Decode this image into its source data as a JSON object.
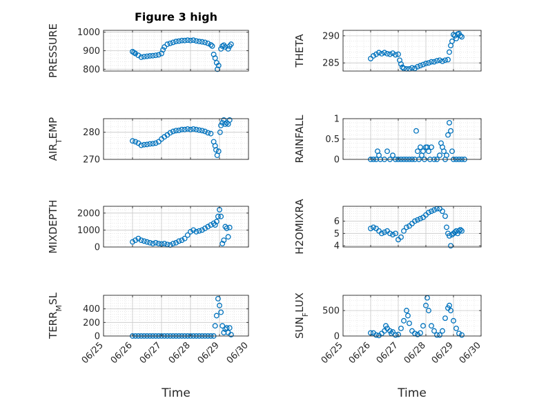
{
  "title": "Figure 3 high",
  "xlabel": "Time",
  "xticks": [
    "06/25",
    "06/26",
    "06/27",
    "06/28",
    "06/29",
    "06/30"
  ],
  "marker_color": "#0072BD",
  "chart_data": [
    {
      "name": "pressure",
      "type": "scatter",
      "ylabel_main": "PRESSURE",
      "ylabel_sub": "",
      "ylabel_tail": "",
      "ylim": [
        790,
        1010
      ],
      "yticks": [
        800,
        900,
        1000
      ],
      "xlim": [
        0,
        5
      ],
      "points": [
        [
          1.0,
          895
        ],
        [
          1.05,
          890
        ],
        [
          1.1,
          885
        ],
        [
          1.2,
          875
        ],
        [
          1.3,
          865
        ],
        [
          1.4,
          868
        ],
        [
          1.5,
          870
        ],
        [
          1.6,
          872
        ],
        [
          1.7,
          873
        ],
        [
          1.8,
          875
        ],
        [
          1.9,
          878
        ],
        [
          2.0,
          885
        ],
        [
          2.05,
          905
        ],
        [
          2.1,
          920
        ],
        [
          2.2,
          935
        ],
        [
          2.3,
          940
        ],
        [
          2.4,
          945
        ],
        [
          2.5,
          950
        ],
        [
          2.6,
          952
        ],
        [
          2.7,
          955
        ],
        [
          2.8,
          955
        ],
        [
          2.9,
          957
        ],
        [
          3.0,
          955
        ],
        [
          3.1,
          957
        ],
        [
          3.2,
          953
        ],
        [
          3.3,
          950
        ],
        [
          3.4,
          948
        ],
        [
          3.5,
          945
        ],
        [
          3.6,
          940
        ],
        [
          3.7,
          932
        ],
        [
          3.75,
          925
        ],
        [
          3.8,
          880
        ],
        [
          3.85,
          860
        ],
        [
          3.9,
          835
        ],
        [
          3.93,
          800
        ],
        [
          3.97,
          820
        ],
        [
          4.05,
          910
        ],
        [
          4.1,
          925
        ],
        [
          4.15,
          930
        ],
        [
          4.2,
          920
        ],
        [
          4.3,
          910
        ],
        [
          4.35,
          925
        ],
        [
          4.4,
          935
        ]
      ]
    },
    {
      "name": "theta",
      "type": "scatter",
      "ylabel_main": "THETA",
      "ylabel_sub": "",
      "ylabel_tail": "",
      "ylim": [
        283.5,
        291
      ],
      "yticks": [
        285,
        290
      ],
      "xlim": [
        0,
        5
      ],
      "points": [
        [
          1.0,
          285.8
        ],
        [
          1.1,
          286.3
        ],
        [
          1.2,
          286.6
        ],
        [
          1.3,
          286.9
        ],
        [
          1.4,
          286.7
        ],
        [
          1.5,
          286.9
        ],
        [
          1.6,
          286.7
        ],
        [
          1.7,
          286.6
        ],
        [
          1.8,
          286.8
        ],
        [
          1.9,
          286.5
        ],
        [
          2.0,
          286.6
        ],
        [
          2.05,
          285.5
        ],
        [
          2.1,
          284.8
        ],
        [
          2.15,
          284.2
        ],
        [
          2.2,
          284.0
        ],
        [
          2.3,
          283.9
        ],
        [
          2.4,
          283.9
        ],
        [
          2.5,
          284.1
        ],
        [
          2.6,
          284.0
        ],
        [
          2.7,
          284.3
        ],
        [
          2.8,
          284.5
        ],
        [
          2.9,
          284.7
        ],
        [
          3.0,
          284.9
        ],
        [
          3.1,
          285.0
        ],
        [
          3.2,
          285.2
        ],
        [
          3.3,
          285.2
        ],
        [
          3.4,
          285.4
        ],
        [
          3.5,
          285.5
        ],
        [
          3.6,
          285.3
        ],
        [
          3.7,
          285.5
        ],
        [
          3.8,
          285.6
        ],
        [
          3.85,
          287.0
        ],
        [
          3.9,
          288.2
        ],
        [
          3.95,
          289.0
        ],
        [
          4.0,
          290.2
        ],
        [
          4.05,
          290.0
        ],
        [
          4.1,
          289.5
        ],
        [
          4.15,
          290.3
        ],
        [
          4.2,
          290.4
        ],
        [
          4.25,
          290.0
        ],
        [
          4.3,
          289.8
        ]
      ]
    },
    {
      "name": "air_temp",
      "type": "scatter",
      "ylabel_main": "AIR",
      "ylabel_sub": "T",
      "ylabel_tail": "EMP",
      "ylim": [
        270,
        285
      ],
      "yticks": [
        270,
        280
      ],
      "xlim": [
        0,
        5
      ],
      "points": [
        [
          1.0,
          276.8
        ],
        [
          1.1,
          276.5
        ],
        [
          1.2,
          276.0
        ],
        [
          1.3,
          275.2
        ],
        [
          1.4,
          275.4
        ],
        [
          1.5,
          275.5
        ],
        [
          1.6,
          275.7
        ],
        [
          1.7,
          275.8
        ],
        [
          1.8,
          276.0
        ],
        [
          1.9,
          276.5
        ],
        [
          2.0,
          277.5
        ],
        [
          2.1,
          278.3
        ],
        [
          2.2,
          279.0
        ],
        [
          2.3,
          279.8
        ],
        [
          2.4,
          280.3
        ],
        [
          2.5,
          280.6
        ],
        [
          2.6,
          280.7
        ],
        [
          2.7,
          281.0
        ],
        [
          2.8,
          281.0
        ],
        [
          2.9,
          281.2
        ],
        [
          3.0,
          281.0
        ],
        [
          3.1,
          281.2
        ],
        [
          3.2,
          281.0
        ],
        [
          3.3,
          280.8
        ],
        [
          3.4,
          280.6
        ],
        [
          3.5,
          280.3
        ],
        [
          3.6,
          279.8
        ],
        [
          3.7,
          279.5
        ],
        [
          3.8,
          276.5
        ],
        [
          3.85,
          275.0
        ],
        [
          3.88,
          273.5
        ],
        [
          3.92,
          271.5
        ],
        [
          3.97,
          273.0
        ],
        [
          4.02,
          280.0
        ],
        [
          4.05,
          282.5
        ],
        [
          4.1,
          283.5
        ],
        [
          4.15,
          284.5
        ],
        [
          4.2,
          283.0
        ],
        [
          4.25,
          283.5
        ],
        [
          4.3,
          283.0
        ],
        [
          4.35,
          284.5
        ]
      ]
    },
    {
      "name": "rainfall",
      "type": "scatter",
      "ylabel_main": "RAINFALL",
      "ylabel_sub": "",
      "ylabel_tail": "",
      "ylim": [
        0,
        1
      ],
      "yticks": [
        0,
        0.5,
        1
      ],
      "ytick_labels": [
        "0",
        "0.5",
        "1"
      ],
      "xlim": [
        0,
        5
      ],
      "points": [
        [
          1.0,
          0
        ],
        [
          1.1,
          0
        ],
        [
          1.2,
          0
        ],
        [
          1.25,
          0.2
        ],
        [
          1.3,
          0.1
        ],
        [
          1.35,
          0
        ],
        [
          1.5,
          0
        ],
        [
          1.6,
          0.2
        ],
        [
          1.7,
          0
        ],
        [
          1.8,
          0.1
        ],
        [
          1.9,
          0
        ],
        [
          2.0,
          0
        ],
        [
          2.1,
          0
        ],
        [
          2.2,
          0
        ],
        [
          2.3,
          0
        ],
        [
          2.4,
          0
        ],
        [
          2.5,
          0
        ],
        [
          2.6,
          0
        ],
        [
          2.65,
          0.7
        ],
        [
          2.7,
          0.2
        ],
        [
          2.75,
          0
        ],
        [
          2.8,
          0.3
        ],
        [
          2.85,
          0.1
        ],
        [
          2.9,
          0.2
        ],
        [
          2.95,
          0
        ],
        [
          3.0,
          0.3
        ],
        [
          3.05,
          0.3
        ],
        [
          3.1,
          0.2
        ],
        [
          3.15,
          0
        ],
        [
          3.2,
          0.3
        ],
        [
          3.3,
          0
        ],
        [
          3.4,
          0
        ],
        [
          3.5,
          0.1
        ],
        [
          3.55,
          0.4
        ],
        [
          3.6,
          0.3
        ],
        [
          3.65,
          0.2
        ],
        [
          3.7,
          0
        ],
        [
          3.75,
          0.1
        ],
        [
          3.8,
          0.6
        ],
        [
          3.85,
          0.9
        ],
        [
          3.9,
          0.7
        ],
        [
          3.95,
          0.2
        ],
        [
          4.0,
          0
        ],
        [
          4.1,
          0
        ],
        [
          4.2,
          0
        ],
        [
          4.3,
          0
        ],
        [
          4.4,
          0
        ]
      ]
    },
    {
      "name": "mixdepth",
      "type": "scatter",
      "ylabel_main": "MIXDEPTH",
      "ylabel_sub": "",
      "ylabel_tail": "",
      "ylim": [
        0,
        2400
      ],
      "yticks": [
        0,
        1000,
        2000
      ],
      "xlim": [
        0,
        5
      ],
      "points": [
        [
          1.0,
          300
        ],
        [
          1.1,
          400
        ],
        [
          1.2,
          500
        ],
        [
          1.3,
          400
        ],
        [
          1.4,
          350
        ],
        [
          1.5,
          300
        ],
        [
          1.6,
          250
        ],
        [
          1.7,
          200
        ],
        [
          1.8,
          250
        ],
        [
          1.9,
          200
        ],
        [
          2.0,
          180
        ],
        [
          2.1,
          200
        ],
        [
          2.2,
          150
        ],
        [
          2.3,
          120
        ],
        [
          2.4,
          200
        ],
        [
          2.5,
          250
        ],
        [
          2.6,
          350
        ],
        [
          2.7,
          400
        ],
        [
          2.8,
          500
        ],
        [
          2.9,
          700
        ],
        [
          3.0,
          900
        ],
        [
          3.1,
          1000
        ],
        [
          3.2,
          900
        ],
        [
          3.3,
          950
        ],
        [
          3.4,
          1000
        ],
        [
          3.5,
          1100
        ],
        [
          3.6,
          1200
        ],
        [
          3.7,
          1300
        ],
        [
          3.8,
          1400
        ],
        [
          3.85,
          1300
        ],
        [
          3.9,
          1500
        ],
        [
          3.95,
          1800
        ],
        [
          4.0,
          2200
        ],
        [
          4.05,
          1800
        ],
        [
          4.1,
          200
        ],
        [
          4.15,
          400
        ],
        [
          4.2,
          1200
        ],
        [
          4.25,
          1100
        ],
        [
          4.3,
          600
        ],
        [
          4.35,
          1150
        ]
      ]
    },
    {
      "name": "h2omixra",
      "type": "scatter",
      "ylabel_main": "H2OMIXRA",
      "ylabel_sub": "",
      "ylabel_tail": "",
      "ylim": [
        3.9,
        7.2
      ],
      "yticks": [
        4,
        5,
        6
      ],
      "xlim": [
        0,
        5
      ],
      "points": [
        [
          1.0,
          5.4
        ],
        [
          1.1,
          5.5
        ],
        [
          1.2,
          5.4
        ],
        [
          1.3,
          5.2
        ],
        [
          1.4,
          5.0
        ],
        [
          1.5,
          5.1
        ],
        [
          1.6,
          5.2
        ],
        [
          1.7,
          5.0
        ],
        [
          1.8,
          4.9
        ],
        [
          1.9,
          5.0
        ],
        [
          2.0,
          4.5
        ],
        [
          2.1,
          4.7
        ],
        [
          2.2,
          5.2
        ],
        [
          2.3,
          5.5
        ],
        [
          2.4,
          5.6
        ],
        [
          2.5,
          5.8
        ],
        [
          2.6,
          6.0
        ],
        [
          2.7,
          6.1
        ],
        [
          2.8,
          6.2
        ],
        [
          2.9,
          6.3
        ],
        [
          3.0,
          6.5
        ],
        [
          3.1,
          6.7
        ],
        [
          3.2,
          6.8
        ],
        [
          3.3,
          6.9
        ],
        [
          3.4,
          7.0
        ],
        [
          3.5,
          7.0
        ],
        [
          3.6,
          6.8
        ],
        [
          3.7,
          6.4
        ],
        [
          3.75,
          5.5
        ],
        [
          3.8,
          5.0
        ],
        [
          3.85,
          4.8
        ],
        [
          3.9,
          4.0
        ],
        [
          3.95,
          4.9
        ],
        [
          4.0,
          5.0
        ],
        [
          4.05,
          5.1
        ],
        [
          4.1,
          5.2
        ],
        [
          4.15,
          5.0
        ],
        [
          4.2,
          5.2
        ],
        [
          4.25,
          5.3
        ],
        [
          4.3,
          5.2
        ]
      ]
    },
    {
      "name": "terr_msl",
      "type": "scatter",
      "ylabel_main": "TERR",
      "ylabel_sub": "M",
      "ylabel_tail": "SL",
      "ylim": [
        0,
        600
      ],
      "yticks": [
        0,
        200,
        400
      ],
      "xlim": [
        0,
        5
      ],
      "points": [
        [
          1.0,
          0
        ],
        [
          1.1,
          0
        ],
        [
          1.2,
          0
        ],
        [
          1.3,
          0
        ],
        [
          1.4,
          0
        ],
        [
          1.5,
          0
        ],
        [
          1.6,
          0
        ],
        [
          1.7,
          0
        ],
        [
          1.8,
          0
        ],
        [
          1.9,
          0
        ],
        [
          2.0,
          0
        ],
        [
          2.1,
          0
        ],
        [
          2.2,
          0
        ],
        [
          2.3,
          0
        ],
        [
          2.4,
          0
        ],
        [
          2.5,
          0
        ],
        [
          2.6,
          0
        ],
        [
          2.7,
          0
        ],
        [
          2.8,
          0
        ],
        [
          2.9,
          0
        ],
        [
          3.0,
          0
        ],
        [
          3.1,
          0
        ],
        [
          3.2,
          0
        ],
        [
          3.3,
          0
        ],
        [
          3.4,
          0
        ],
        [
          3.5,
          0
        ],
        [
          3.6,
          0
        ],
        [
          3.7,
          0
        ],
        [
          3.8,
          0
        ],
        [
          3.85,
          150
        ],
        [
          3.9,
          300
        ],
        [
          3.95,
          550
        ],
        [
          4.0,
          450
        ],
        [
          4.05,
          350
        ],
        [
          4.1,
          150
        ],
        [
          4.15,
          50
        ],
        [
          4.2,
          100
        ],
        [
          4.25,
          120
        ],
        [
          4.3,
          50
        ],
        [
          4.35,
          120
        ],
        [
          4.4,
          20
        ]
      ]
    },
    {
      "name": "sun_flux",
      "type": "scatter",
      "ylabel_main": "SUN",
      "ylabel_sub": "F",
      "ylabel_tail": "LUX",
      "ylim": [
        0,
        800
      ],
      "yticks": [
        0,
        500
      ],
      "xlim": [
        0,
        5
      ],
      "points": [
        [
          1.0,
          60
        ],
        [
          1.1,
          60
        ],
        [
          1.2,
          20
        ],
        [
          1.3,
          10
        ],
        [
          1.4,
          50
        ],
        [
          1.5,
          100
        ],
        [
          1.55,
          200
        ],
        [
          1.6,
          150
        ],
        [
          1.7,
          100
        ],
        [
          1.75,
          50
        ],
        [
          1.8,
          80
        ],
        [
          1.9,
          20
        ],
        [
          2.0,
          30
        ],
        [
          2.1,
          150
        ],
        [
          2.2,
          300
        ],
        [
          2.3,
          500
        ],
        [
          2.35,
          400
        ],
        [
          2.4,
          250
        ],
        [
          2.5,
          100
        ],
        [
          2.6,
          50
        ],
        [
          2.7,
          30
        ],
        [
          2.8,
          60
        ],
        [
          2.9,
          200
        ],
        [
          3.0,
          600
        ],
        [
          3.05,
          750
        ],
        [
          3.1,
          500
        ],
        [
          3.2,
          200
        ],
        [
          3.3,
          100
        ],
        [
          3.4,
          20
        ],
        [
          3.5,
          20
        ],
        [
          3.6,
          100
        ],
        [
          3.7,
          350
        ],
        [
          3.8,
          550
        ],
        [
          3.85,
          600
        ],
        [
          3.9,
          500
        ],
        [
          4.0,
          300
        ],
        [
          4.1,
          150
        ],
        [
          4.2,
          50
        ],
        [
          4.3,
          20
        ]
      ]
    }
  ]
}
